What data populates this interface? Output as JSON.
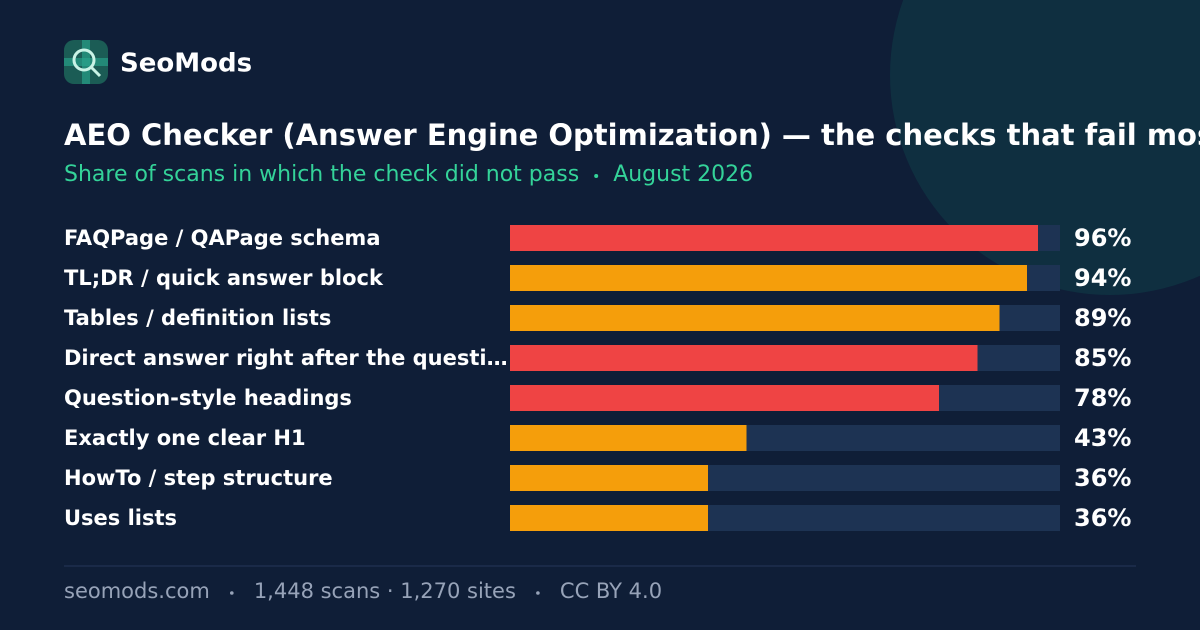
{
  "brand": "SeoMods",
  "chart_data": {
    "type": "bar",
    "orientation": "horizontal",
    "title": "AEO Checker (Answer Engine Optimization) — the checks that fail most o",
    "subtitle": "Share of scans in which the check did not pass",
    "date": "August 2026",
    "categories": [
      "FAQPage / QAPage schema",
      "TL;DR / quick answer block",
      "Tables / definition lists",
      "Direct answer right after the questi…",
      "Question-style headings",
      "Exactly one clear H1",
      "HowTo / step structure",
      "Uses lists"
    ],
    "values": [
      96,
      94,
      89,
      85,
      78,
      43,
      36,
      36
    ],
    "value_labels": [
      "96%",
      "94%",
      "89%",
      "85%",
      "78%",
      "43%",
      "36%",
      "36%"
    ],
    "colors": [
      "#ef4444",
      "#f59e0b",
      "#f59e0b",
      "#ef4444",
      "#ef4444",
      "#f59e0b",
      "#f59e0b",
      "#f59e0b"
    ],
    "track_color": "#1d3353",
    "xlim": [
      0,
      100
    ]
  },
  "footer": {
    "site": "seomods.com",
    "stats": "1,448 scans · 1,270 sites",
    "license": "CC BY 4.0"
  }
}
